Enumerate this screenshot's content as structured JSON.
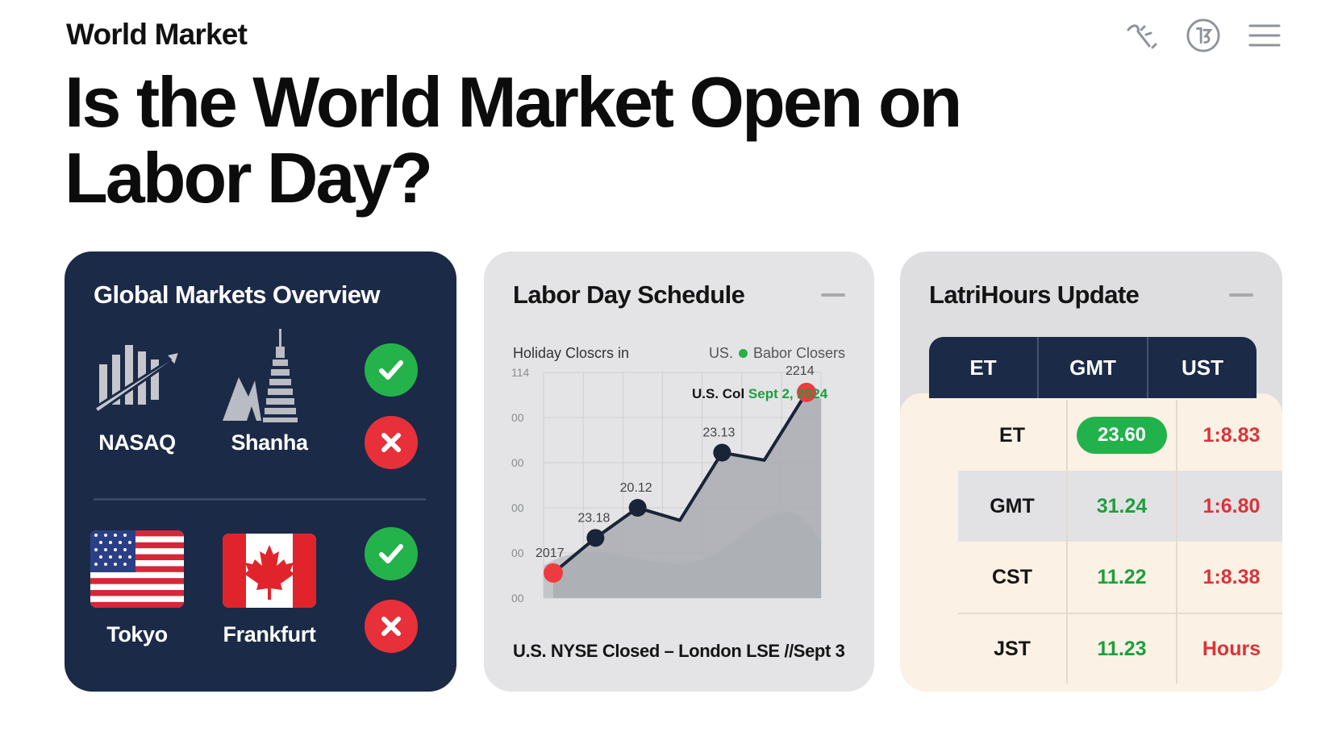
{
  "header": {
    "site_name": "World Market",
    "icons": [
      "wand-icon",
      "currency-circle-icon",
      "hamburger-menu-icon"
    ]
  },
  "headline": "Is the World Market Open on Labor Day?",
  "overview": {
    "title": "Global Markets Overview",
    "markets": [
      {
        "label": "NASAQ",
        "icon": "bar-chart-arrow-icon",
        "status": "open"
      },
      {
        "label": "Shanha",
        "icon": "tower-icon",
        "status": "closed"
      },
      {
        "label": "Tokyo",
        "icon": "us-flag-icon",
        "status": "open"
      },
      {
        "label": "Frankfurt",
        "icon": "canada-flag-icon",
        "status": "closed"
      }
    ],
    "status_icons": {
      "open": "check-icon",
      "closed": "cross-icon"
    },
    "colors": {
      "open": "#24b34b",
      "closed": "#e8303a",
      "card": "#1b2a47"
    }
  },
  "schedule": {
    "title": "Labor Day Schedule",
    "legend_left": "Holiday Closcrs in",
    "legend_right_prefix": "US.",
    "legend_right": "Babor Closers",
    "annotation_prefix": "U.S. Col",
    "annotation_date": "Sept 2, 2024",
    "footer": "U.S. NYSE Closed – London LSE //Sept 3",
    "chart_data": {
      "type": "line",
      "y_tick_labels": [
        "114",
        "00",
        "00",
        "00",
        "00",
        "00"
      ],
      "points": [
        {
          "label": "2017",
          "value": 1
        },
        {
          "label": "23.18",
          "value": 1.7
        },
        {
          "label": "20.12",
          "value": 2.3
        },
        {
          "label": "",
          "value": 2.05
        },
        {
          "label": "23.13",
          "value": 3.4
        },
        {
          "label": "",
          "value": 3.25
        },
        {
          "label": "2214",
          "value": 4.6
        }
      ],
      "highlight_points": [
        0,
        6
      ],
      "colors": {
        "line": "#1a2438",
        "highlight": "#ef3a3f",
        "area": "#a9abb0"
      },
      "grid": true
    }
  },
  "hours": {
    "title": "LatriHours Update",
    "columns": [
      "ET",
      "GMT",
      "UST"
    ],
    "rows": [
      {
        "name": "ET",
        "gmt": "23.60",
        "ust": "1:8.83",
        "highlight": true
      },
      {
        "name": "GMT",
        "gmt": "31.24",
        "ust": "1:6.80"
      },
      {
        "name": "CST",
        "gmt": "11.22",
        "ust": "1:8.38"
      },
      {
        "name": "JST",
        "gmt": "11.23",
        "ust": "Hours"
      }
    ],
    "colors": {
      "header": "#1b2a47",
      "green": "#1e9e3e",
      "red": "#d8343a",
      "pill": "#21b24c"
    }
  }
}
